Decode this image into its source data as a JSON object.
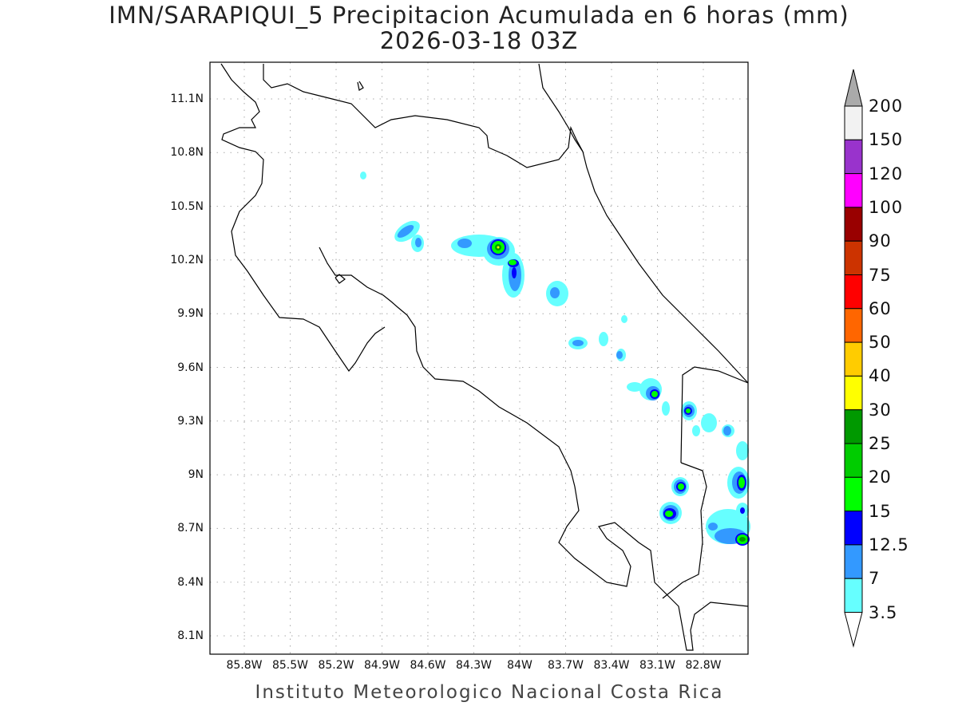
{
  "title": "IMN/SARAPIQUI_5 Precipitacion Acumulada en 6 horas (mm)",
  "subtitle": "2026-03-18 03Z",
  "footer": "Instituto Meteorologico Nacional Costa Rica",
  "map": {
    "lon_ticks": [
      "85.8W",
      "85.5W",
      "85.2W",
      "84.9W",
      "84.6W",
      "84.3W",
      "84W",
      "83.7W",
      "83.4W",
      "83.1W",
      "82.8W"
    ],
    "lat_ticks": [
      "11.1N",
      "10.8N",
      "10.5N",
      "10.2N",
      "9.9N",
      "9.6N",
      "9.3N",
      "9N",
      "8.7N",
      "8.4N",
      "8.1N"
    ],
    "grid": "dotted"
  },
  "colorbar": {
    "labels": [
      "200",
      "150",
      "120",
      "100",
      "90",
      "75",
      "60",
      "50",
      "40",
      "30",
      "25",
      "20",
      "15",
      "12.5",
      "7",
      "3.5"
    ],
    "colors": [
      "#f2f2f2",
      "#9933cc",
      "#ff00ff",
      "#990000",
      "#cc3300",
      "#ff0000",
      "#ff6600",
      "#ffcc00",
      "#ffff00",
      "#009900",
      "#00cc00",
      "#00ff00",
      "#0000ff",
      "#3399ff",
      "#66ffff"
    ],
    "over_color": "#aaaaaa",
    "under_color": "#ffffff"
  }
}
